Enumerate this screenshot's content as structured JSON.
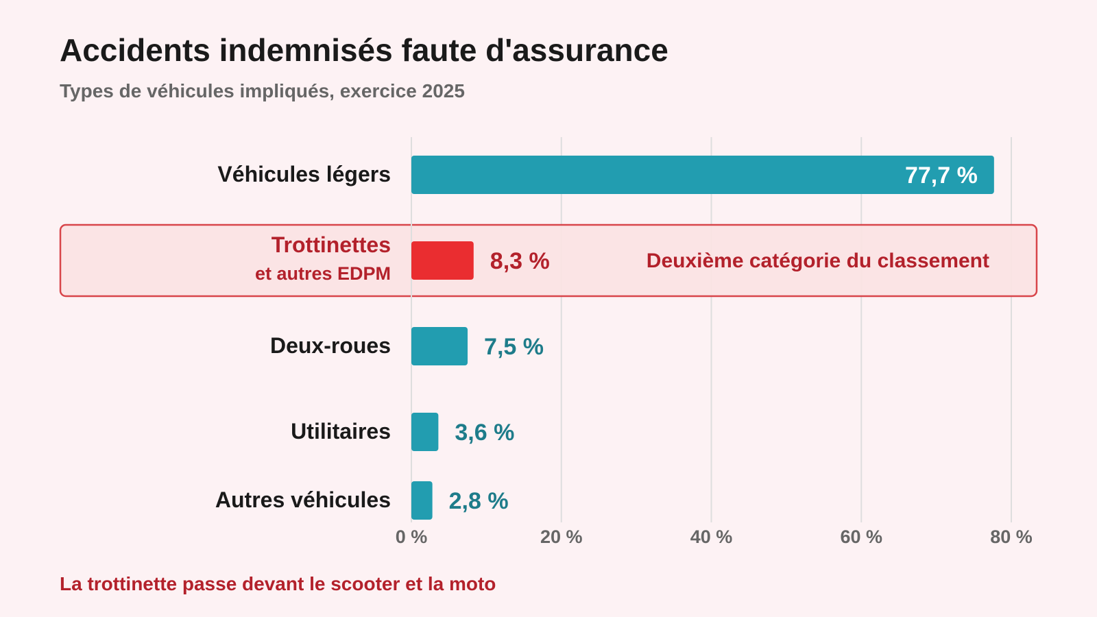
{
  "header": {
    "title": "Accidents indemnisés faute d'assurance",
    "subtitle": "Types de véhicules impliqués, exercice 2025"
  },
  "footer": {
    "note": "La trottinette passe devant le scooter et la moto"
  },
  "colors": {
    "background": "#fdf2f4",
    "bar": "#229db0",
    "highlight_bar": "#ea2d30",
    "highlight_text": "#b3212b",
    "highlight_box_fill": "#fbe3e3",
    "highlight_box_stroke": "#d8454a",
    "value_label": "#1e7c8a",
    "category_label": "#1a1a1a",
    "grid": "#dedede",
    "tick_label": "#666666"
  },
  "chart_data": {
    "type": "bar",
    "orientation": "horizontal",
    "categories": [
      "Véhicules légers",
      "Trottinettes et autres EDPM",
      "Deux-roues",
      "Utilitaires",
      "Autres véhicules"
    ],
    "category_labels": [
      {
        "line1": "Véhicules légers",
        "line2": ""
      },
      {
        "line1": "Trottinettes",
        "line2": "et autres EDPM"
      },
      {
        "line1": "Deux-roues",
        "line2": ""
      },
      {
        "line1": "Utilitaires",
        "line2": ""
      },
      {
        "line1": "Autres véhicules",
        "line2": ""
      }
    ],
    "values": [
      77.7,
      8.3,
      7.5,
      3.6,
      2.8
    ],
    "value_labels": [
      "77,7 %",
      "8,3 %",
      "7,5 %",
      "3,6 %",
      "2,8 %"
    ],
    "unit": "%",
    "xlim": [
      0,
      80
    ],
    "xticks": [
      0,
      20,
      40,
      60,
      80
    ],
    "xtick_labels": [
      "0 %",
      "20 %",
      "40 %",
      "60 %",
      "80 %"
    ],
    "grid": true,
    "highlight_index": 1,
    "highlight_annotation": "Deuxième catégorie du classement"
  }
}
